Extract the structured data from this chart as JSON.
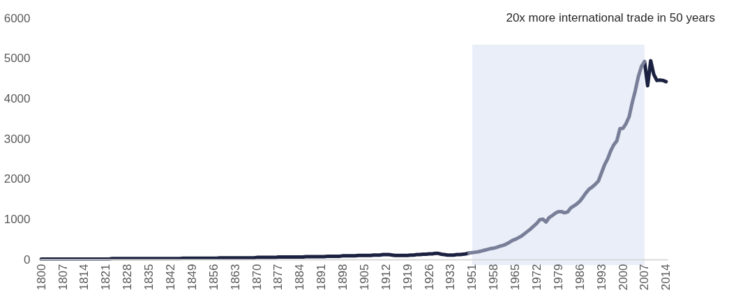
{
  "chart_data": {
    "type": "line",
    "title": "20x more international trade in 50 years",
    "categories": [
      "1800",
      null,
      null,
      null,
      null,
      null,
      null,
      "1807",
      null,
      null,
      null,
      null,
      null,
      null,
      "1814",
      null,
      null,
      null,
      null,
      null,
      null,
      "1821",
      null,
      null,
      null,
      null,
      null,
      null,
      "1828",
      null,
      null,
      null,
      null,
      null,
      null,
      "1835",
      null,
      null,
      null,
      null,
      null,
      null,
      "1842",
      null,
      null,
      null,
      null,
      null,
      null,
      "1849",
      null,
      null,
      null,
      null,
      null,
      null,
      "1856",
      null,
      null,
      null,
      null,
      null,
      null,
      "1863",
      null,
      null,
      null,
      null,
      null,
      null,
      "1870",
      null,
      null,
      null,
      null,
      null,
      null,
      "1877",
      null,
      null,
      null,
      null,
      null,
      null,
      "1884",
      null,
      null,
      null,
      null,
      null,
      null,
      "1891",
      null,
      null,
      null,
      null,
      null,
      null,
      "1898",
      null,
      null,
      null,
      null,
      null,
      null,
      "1905",
      null,
      null,
      null,
      null,
      null,
      null,
      "1912",
      null,
      null,
      null,
      null,
      null,
      null,
      "1919",
      null,
      null,
      null,
      null,
      null,
      null,
      "1926",
      null,
      null,
      null,
      null,
      null,
      null,
      "1933",
      null,
      null,
      null,
      null,
      null,
      null,
      "1951",
      null,
      null,
      null,
      null,
      null,
      null,
      "1958",
      null,
      null,
      null,
      null,
      null,
      null,
      "1965",
      null,
      null,
      null,
      null,
      null,
      null,
      "1972",
      null,
      null,
      null,
      null,
      null,
      null,
      "1979",
      null,
      null,
      null,
      null,
      null,
      null,
      "1986",
      null,
      null,
      null,
      null,
      null,
      null,
      "1993",
      null,
      null,
      null,
      null,
      null,
      null,
      "2000",
      null,
      null,
      null,
      null,
      null,
      null,
      "2007",
      null,
      null,
      null,
      null,
      null,
      null,
      "2014"
    ],
    "series": [
      {
        "color": "#1b2140",
        "values": [
          10,
          10,
          10,
          10,
          10,
          10,
          10,
          10,
          10,
          10,
          10,
          10,
          10,
          10,
          10,
          10,
          10,
          10,
          10,
          10,
          10,
          10,
          10,
          20,
          20,
          20,
          20,
          20,
          20,
          20,
          20,
          20,
          20,
          20,
          20,
          20,
          20,
          20,
          20,
          20,
          20,
          20,
          20,
          20,
          20,
          20,
          30,
          30,
          30,
          30,
          30,
          30,
          30,
          30,
          30,
          30,
          30,
          30,
          40,
          40,
          40,
          40,
          40,
          40,
          40,
          40,
          40,
          40,
          40,
          40,
          50,
          50,
          50,
          50,
          50,
          50,
          50,
          60,
          60,
          60,
          60,
          60,
          60,
          60,
          60,
          60,
          70,
          70,
          70,
          70,
          70,
          70,
          70,
          80,
          80,
          80,
          80,
          80,
          90,
          90,
          90,
          90,
          90,
          100,
          100,
          100,
          100,
          100,
          110,
          110,
          110,
          120,
          120,
          120,
          110,
          100,
          100,
          100,
          100,
          100,
          110,
          110,
          120,
          120,
          130,
          130,
          140,
          140,
          150,
          150,
          130,
          120,
          110,
          110,
          110,
          120,
          120,
          130,
          140,
          160,
          null,
          null,
          null,
          null,
          null,
          null,
          null,
          null,
          null,
          null,
          null,
          null,
          null,
          null,
          null,
          null,
          null,
          null,
          null,
          null,
          null,
          null,
          null,
          null,
          null,
          null,
          null,
          null,
          null,
          null,
          null,
          null,
          null,
          null,
          null,
          null,
          null,
          null,
          null,
          null,
          null,
          null,
          null,
          null,
          null,
          null,
          null,
          null,
          null,
          null,
          null,
          null,
          null,
          null,
          null,
          null,
          4920,
          4320,
          4940,
          4600,
          4450,
          4460,
          4450,
          4420
        ]
      },
      {
        "color": "#7a7f99",
        "values": [
          null,
          null,
          null,
          null,
          null,
          null,
          null,
          null,
          null,
          null,
          null,
          null,
          null,
          null,
          null,
          null,
          null,
          null,
          null,
          null,
          null,
          null,
          null,
          null,
          null,
          null,
          null,
          null,
          null,
          null,
          null,
          null,
          null,
          null,
          null,
          null,
          null,
          null,
          null,
          null,
          null,
          null,
          null,
          null,
          null,
          null,
          null,
          null,
          null,
          null,
          null,
          null,
          null,
          null,
          null,
          null,
          null,
          null,
          null,
          null,
          null,
          null,
          null,
          null,
          null,
          null,
          null,
          null,
          null,
          null,
          null,
          null,
          null,
          null,
          null,
          null,
          null,
          null,
          null,
          null,
          null,
          null,
          null,
          null,
          null,
          null,
          null,
          null,
          null,
          null,
          null,
          null,
          null,
          null,
          null,
          null,
          null,
          null,
          null,
          null,
          null,
          null,
          null,
          null,
          null,
          null,
          null,
          null,
          null,
          null,
          null,
          null,
          null,
          null,
          null,
          null,
          null,
          null,
          null,
          null,
          null,
          null,
          null,
          null,
          null,
          null,
          null,
          null,
          null,
          null,
          null,
          null,
          null,
          null,
          null,
          null,
          null,
          null,
          null,
          160,
          170,
          180,
          190,
          210,
          230,
          250,
          270,
          280,
          300,
          330,
          350,
          380,
          420,
          470,
          500,
          540,
          580,
          640,
          700,
          760,
          830,
          900,
          990,
          1000,
          930,
          1040,
          1090,
          1150,
          1190,
          1190,
          1160,
          1180,
          1280,
          1330,
          1380,
          1450,
          1550,
          1660,
          1750,
          1800,
          1870,
          1950,
          2150,
          2350,
          2500,
          2700,
          2850,
          2950,
          3250,
          3260,
          3380,
          3550,
          3900,
          4200,
          4550,
          4800,
          4920,
          null,
          null,
          null,
          null,
          null,
          null,
          null
        ]
      }
    ],
    "ylim": [
      0,
      6000
    ],
    "yticks": [
      0,
      1000,
      2000,
      3000,
      4000,
      5000,
      6000
    ],
    "bands": [
      {
        "axis": "x",
        "from": "1951",
        "to": "2007",
        "color": "#e9eef8"
      }
    ],
    "grid": false,
    "marker": "none",
    "line_style": "solid"
  }
}
